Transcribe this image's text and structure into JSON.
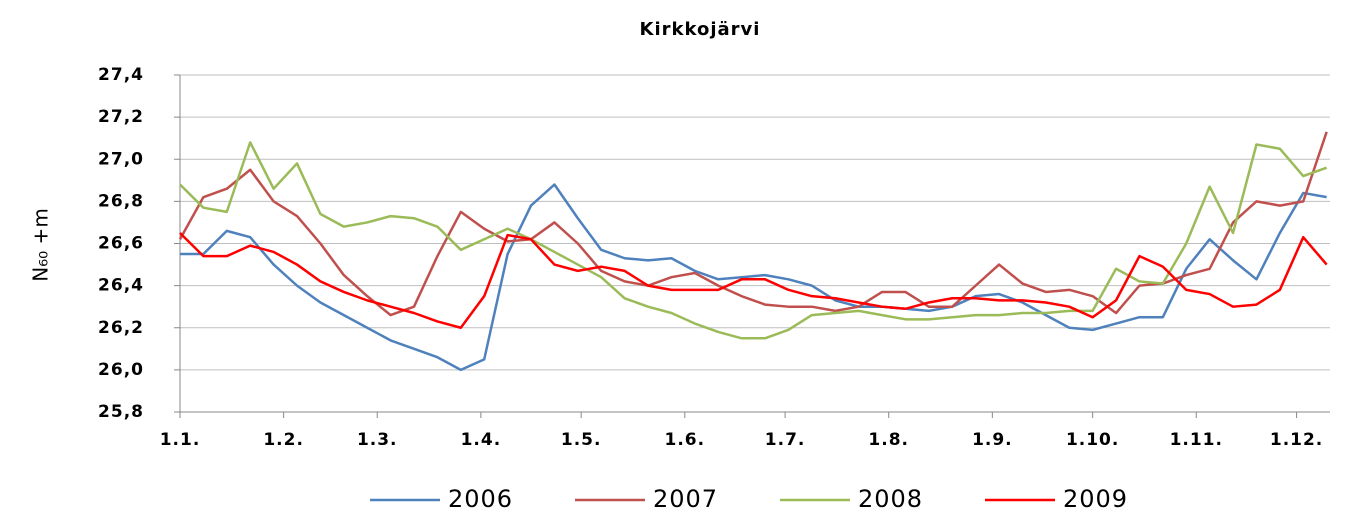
{
  "chart_data": {
    "type": "line",
    "title": "Kirkkojärvi",
    "y_label": "N₆₀ +m",
    "x": [
      0,
      7,
      14,
      21,
      28,
      35,
      42,
      49,
      56,
      63,
      70,
      77,
      84,
      91,
      98,
      105,
      112,
      119,
      126,
      133,
      140,
      147,
      154,
      161,
      168,
      175,
      182,
      189,
      196,
      203,
      210,
      217,
      224,
      231,
      238,
      245,
      252,
      259,
      266,
      273,
      280,
      287,
      294,
      301,
      308,
      315,
      322,
      329,
      336,
      343
    ],
    "xlim": [
      0,
      344
    ],
    "xticks": [
      {
        "value": 0,
        "label": "1.1."
      },
      {
        "value": 31,
        "label": "1.2."
      },
      {
        "value": 59,
        "label": "1.3."
      },
      {
        "value": 90,
        "label": "1.4."
      },
      {
        "value": 120,
        "label": "1.5."
      },
      {
        "value": 151,
        "label": "1.6."
      },
      {
        "value": 181,
        "label": "1.7."
      },
      {
        "value": 212,
        "label": "1.8."
      },
      {
        "value": 243,
        "label": "1.9."
      },
      {
        "value": 273,
        "label": "1.10."
      },
      {
        "value": 304,
        "label": "1.11."
      },
      {
        "value": 334,
        "label": "1.12."
      }
    ],
    "ylim": [
      25.8,
      27.4
    ],
    "yticks": [
      {
        "value": 25.8,
        "label": "25,8"
      },
      {
        "value": 26.0,
        "label": "26,0"
      },
      {
        "value": 26.2,
        "label": "26,2"
      },
      {
        "value": 26.4,
        "label": "26,4"
      },
      {
        "value": 26.6,
        "label": "26,6"
      },
      {
        "value": 26.8,
        "label": "26,8"
      },
      {
        "value": 27.0,
        "label": "27,0"
      },
      {
        "value": 27.2,
        "label": "27,2"
      },
      {
        "value": 27.4,
        "label": "27,4"
      }
    ],
    "grid": true,
    "legend": "bottom",
    "series": [
      {
        "name": "2006",
        "color": "#4f81bd",
        "values": [
          26.55,
          26.55,
          26.66,
          26.63,
          26.5,
          26.4,
          26.32,
          26.26,
          26.2,
          26.14,
          26.1,
          26.06,
          26.0,
          26.05,
          26.55,
          26.78,
          26.88,
          26.72,
          26.57,
          26.53,
          26.52,
          26.53,
          26.47,
          26.43,
          26.44,
          26.45,
          26.43,
          26.4,
          26.33,
          26.3,
          26.3,
          26.29,
          26.28,
          26.3,
          26.35,
          26.36,
          26.32,
          26.26,
          26.2,
          26.19,
          26.22,
          26.25,
          26.25,
          26.48,
          26.62,
          26.52,
          26.43,
          26.65,
          26.84,
          26.82
        ]
      },
      {
        "name": "2007",
        "color": "#c0504d",
        "values": [
          26.62,
          26.82,
          26.86,
          26.95,
          26.8,
          26.73,
          26.6,
          26.45,
          26.35,
          26.26,
          26.3,
          26.54,
          26.75,
          26.67,
          26.61,
          26.62,
          26.7,
          26.6,
          26.47,
          26.42,
          26.4,
          26.44,
          26.46,
          26.4,
          26.35,
          26.31,
          26.3,
          26.3,
          26.28,
          26.3,
          26.37,
          26.37,
          26.3,
          26.3,
          26.4,
          26.5,
          26.41,
          26.37,
          26.38,
          26.35,
          26.27,
          26.4,
          26.41,
          26.45,
          26.48,
          26.7,
          26.8,
          26.78,
          26.8,
          27.13
        ]
      },
      {
        "name": "2008",
        "color": "#9bbb59",
        "values": [
          26.88,
          26.77,
          26.75,
          27.08,
          26.86,
          26.98,
          26.74,
          26.68,
          26.7,
          26.73,
          26.72,
          26.68,
          26.57,
          26.62,
          26.67,
          26.62,
          26.56,
          26.5,
          26.44,
          26.34,
          26.3,
          26.27,
          26.22,
          26.18,
          26.15,
          26.15,
          26.19,
          26.26,
          26.27,
          26.28,
          26.26,
          26.24,
          26.24,
          26.25,
          26.26,
          26.26,
          26.27,
          26.27,
          26.28,
          26.28,
          26.48,
          26.42,
          26.41,
          26.6,
          26.87,
          26.65,
          27.07,
          27.05,
          26.92,
          26.96
        ]
      },
      {
        "name": "2009",
        "color": "#ff0000",
        "values": [
          26.65,
          26.54,
          26.54,
          26.59,
          26.56,
          26.5,
          26.42,
          26.37,
          26.33,
          26.3,
          26.27,
          26.23,
          26.2,
          26.35,
          26.64,
          26.62,
          26.5,
          26.47,
          26.49,
          26.47,
          26.4,
          26.38,
          26.38,
          26.38,
          26.43,
          26.43,
          26.38,
          26.35,
          26.34,
          26.32,
          26.3,
          26.29,
          26.32,
          26.34,
          26.34,
          26.33,
          26.33,
          26.32,
          26.3,
          26.25,
          26.33,
          26.54,
          26.49,
          26.38,
          26.36,
          26.3,
          26.31,
          26.38,
          26.63,
          26.5
        ]
      }
    ]
  }
}
